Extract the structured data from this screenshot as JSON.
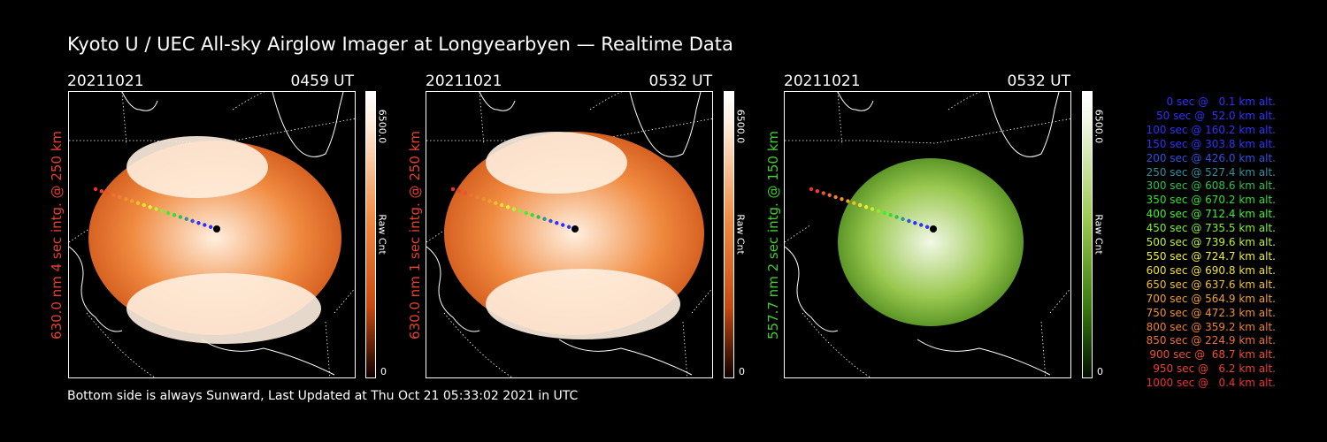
{
  "title": "Kyoto U / UEC All-sky Airglow Imager at Longyearbyen — Realtime Data",
  "panels": [
    {
      "date": "20211021",
      "time": "0459 UT",
      "side_label": "630.0 nm 4 sec intg. @ 250 km",
      "side_label_color": "#e8402a",
      "colorbar_max": "6500.0",
      "colorbar_min": "0",
      "colorbar_unit": "Raw Cnt",
      "colormap": "red",
      "colors": {
        "bright": "#fff0e0",
        "mid": "#f08a40",
        "dark": "#c84a10"
      }
    },
    {
      "date": "20211021",
      "time": "0532 UT",
      "side_label": "630.0 nm 1 sec intg. @ 250 km",
      "side_label_color": "#e8402a",
      "colorbar_max": "6500.0",
      "colorbar_min": "0",
      "colorbar_unit": "Raw Cnt",
      "colormap": "red",
      "colors": {
        "bright": "#fff0e0",
        "mid": "#f08a40",
        "dark": "#c84a10"
      }
    },
    {
      "date": "20211021",
      "time": "0532 UT",
      "side_label": "557.7 nm 2 sec intg. @ 150 km",
      "side_label_color": "#40d030",
      "colorbar_max": "6500.0",
      "colorbar_min": "0",
      "colorbar_unit": "Raw Cnt",
      "colormap": "green",
      "colors": {
        "bright": "#f2f8e6",
        "mid": "#9ac850",
        "dark": "#3a7a10"
      }
    }
  ],
  "footer": "Bottom side is always Sunward, Last Updated at Thu Oct 21 05:33:02 2021 in UTC",
  "legend": [
    {
      "text": "0 sec @   0.1 km alt.",
      "color": "#3030ff"
    },
    {
      "text": "50 sec @  52.0 km alt.",
      "color": "#3030ff"
    },
    {
      "text": "100 sec @ 160.2 km alt.",
      "color": "#3030ff"
    },
    {
      "text": "150 sec @ 303.8 km alt.",
      "color": "#3030ff"
    },
    {
      "text": "200 sec @ 426.0 km alt.",
      "color": "#3050e0"
    },
    {
      "text": "250 sec @ 527.4 km alt.",
      "color": "#3090a0"
    },
    {
      "text": "300 sec @ 608.6 km alt.",
      "color": "#30c050"
    },
    {
      "text": "350 sec @ 670.2 km alt.",
      "color": "#30e030"
    },
    {
      "text": "400 sec @ 712.4 km alt.",
      "color": "#40f030"
    },
    {
      "text": "450 sec @ 735.5 km alt.",
      "color": "#80f030"
    },
    {
      "text": "500 sec @ 739.6 km alt.",
      "color": "#c0f030"
    },
    {
      "text": "550 sec @ 724.7 km alt.",
      "color": "#f0f030"
    },
    {
      "text": "600 sec @ 690.8 km alt.",
      "color": "#f0e030"
    },
    {
      "text": "650 sec @ 637.6 km alt.",
      "color": "#f0c030"
    },
    {
      "text": "700 sec @ 564.9 km alt.",
      "color": "#f0a030"
    },
    {
      "text": "750 sec @ 472.3 km alt.",
      "color": "#f09030"
    },
    {
      "text": "800 sec @ 359.2 km alt.",
      "color": "#f08030"
    },
    {
      "text": "850 sec @ 224.9 km alt.",
      "color": "#f07030"
    },
    {
      "text": "900 sec @  68.7 km alt.",
      "color": "#f05030"
    },
    {
      "text": "950 sec @   6.2 km alt.",
      "color": "#f04030"
    },
    {
      "text": "1000 sec @   0.4 km alt.",
      "color": "#f03030"
    }
  ]
}
